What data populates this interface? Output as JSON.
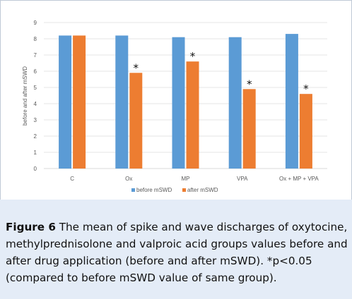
{
  "figure": {
    "label": "Figure 6",
    "caption": "The mean of spike and wave discharges of oxytocine, methylprednisolone and valproic acid groups values before and after drug application (before and after mSWD). *p<0.05 (compared to before mSWD value of same group)."
  },
  "chart_data": {
    "type": "bar",
    "categories": [
      "C",
      "Ox",
      "MP",
      "VPA",
      "Ox + MP + VPA"
    ],
    "series": [
      {
        "name": "before mSWD",
        "values": [
          8.2,
          8.2,
          8.1,
          8.1,
          8.3
        ],
        "color": "#5b9bd5"
      },
      {
        "name": "after mSWD",
        "values": [
          8.2,
          5.9,
          6.6,
          4.9,
          4.6
        ],
        "color": "#ed7d31"
      }
    ],
    "significance_marker": "*",
    "significant": [
      false,
      true,
      true,
      true,
      true
    ],
    "ylabel": "before and after mSWD",
    "xlabel": "",
    "ylim": [
      0,
      9
    ],
    "yticks": [
      "0",
      "1",
      "2",
      "3",
      "4",
      "5",
      "6",
      "7",
      "8",
      "9"
    ],
    "grid": true,
    "legend_position": "bottom"
  }
}
